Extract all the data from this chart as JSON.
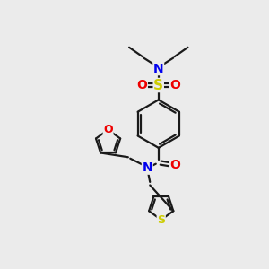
{
  "background_color": "#ebebeb",
  "bond_color": "#1a1a1a",
  "atom_colors": {
    "N": "#0000ee",
    "O": "#ee0000",
    "S_sulfonyl": "#cccc00",
    "S_thio": "#cccc00"
  },
  "figsize": [
    3.0,
    3.0
  ],
  "dpi": 100,
  "lw": 1.6
}
